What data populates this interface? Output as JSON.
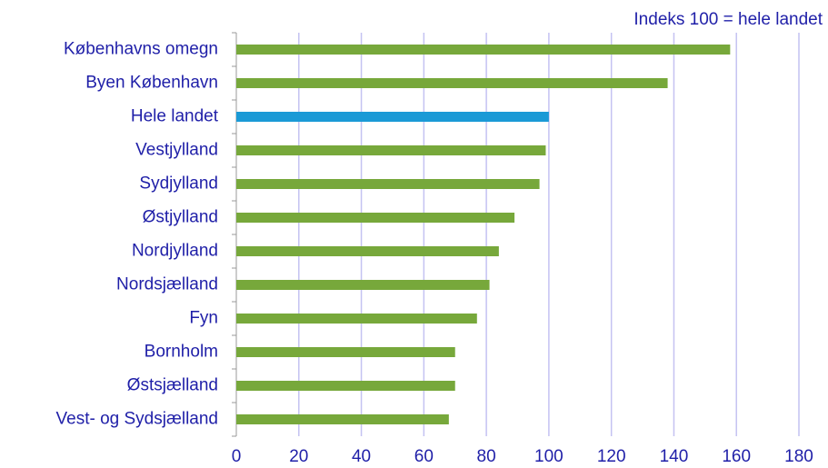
{
  "chart_data": {
    "type": "bar",
    "orientation": "horizontal",
    "annotation": "Indeks 100 = hele landet",
    "categories": [
      "Københavns omegn",
      "Byen København",
      "Hele landet",
      "Vestjylland",
      "Sydjylland",
      "Østjylland",
      "Nordjylland",
      "Nordsjælland",
      "Fyn",
      "Bornholm",
      "Østsjælland",
      "Vest- og Sydsjælland"
    ],
    "values": [
      158,
      138,
      100,
      99,
      97,
      89,
      84,
      81,
      77,
      70,
      70,
      68
    ],
    "colors": [
      "#77a83b",
      "#77a83b",
      "#1b9ad6",
      "#77a83b",
      "#77a83b",
      "#77a83b",
      "#77a83b",
      "#77a83b",
      "#77a83b",
      "#77a83b",
      "#77a83b",
      "#77a83b"
    ],
    "xlim": [
      0,
      180
    ],
    "xticks": [
      0,
      20,
      40,
      60,
      80,
      100,
      120,
      140,
      160,
      180
    ],
    "grid": true
  }
}
